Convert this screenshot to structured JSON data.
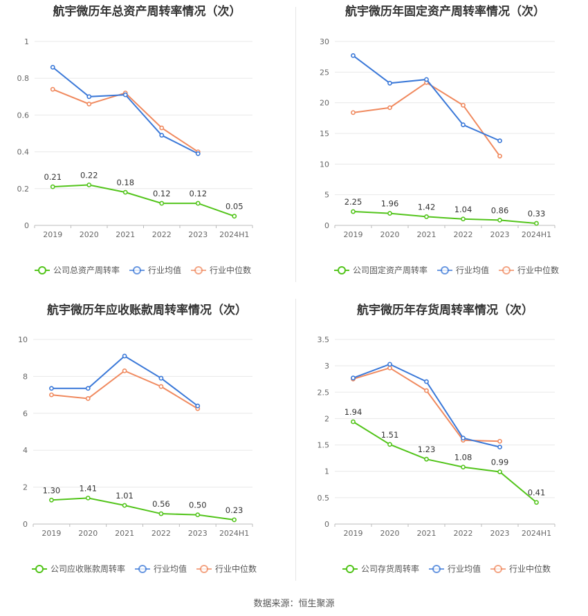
{
  "chart_data": [
    {
      "type": "line",
      "title": "航宇微历年总资产周转率情况（次）",
      "categories": [
        "2019",
        "2020",
        "2021",
        "2022",
        "2023",
        "2024H1"
      ],
      "yticks": [
        "0",
        "0.2",
        "0.4",
        "0.6",
        "0.8",
        "1"
      ],
      "ylim": [
        0,
        1
      ],
      "series": [
        {
          "name": "公司总资产周转率",
          "color": "#52c41a",
          "values": [
            0.21,
            0.22,
            0.18,
            0.12,
            0.12,
            0.05
          ],
          "labels": [
            "0.21",
            "0.22",
            "0.18",
            "0.12",
            "0.12",
            "0.05"
          ]
        },
        {
          "name": "行业均值",
          "color": "#3a78d8",
          "values": [
            0.86,
            0.7,
            0.71,
            0.49,
            0.39,
            null
          ]
        },
        {
          "name": "行业中位数",
          "color": "#f0895e",
          "values": [
            0.74,
            0.66,
            0.72,
            0.53,
            0.4,
            null
          ]
        }
      ]
    },
    {
      "type": "line",
      "title": "航宇微历年固定资产周转率情况（次）",
      "categories": [
        "2019",
        "2020",
        "2021",
        "2022",
        "2023",
        "2024H1"
      ],
      "yticks": [
        "0",
        "5",
        "10",
        "15",
        "20",
        "25",
        "30"
      ],
      "ylim": [
        0,
        30
      ],
      "series": [
        {
          "name": "公司固定资产周转率",
          "color": "#52c41a",
          "values": [
            2.25,
            1.96,
            1.42,
            1.04,
            0.86,
            0.33
          ],
          "labels": [
            "2.25",
            "1.96",
            "1.42",
            "1.04",
            "0.86",
            "0.33"
          ]
        },
        {
          "name": "行业均值",
          "color": "#3a78d8",
          "values": [
            27.7,
            23.2,
            23.8,
            16.4,
            13.8,
            null
          ]
        },
        {
          "name": "行业中位数",
          "color": "#f0895e",
          "values": [
            18.4,
            19.2,
            23.3,
            19.6,
            11.3,
            null
          ]
        }
      ]
    },
    {
      "type": "line",
      "title": "航宇微历年应收账款周转率情况（次）",
      "categories": [
        "2019",
        "2020",
        "2021",
        "2022",
        "2023",
        "2024H1"
      ],
      "yticks": [
        "0",
        "2",
        "4",
        "6",
        "8",
        "10"
      ],
      "ylim": [
        0,
        10
      ],
      "series": [
        {
          "name": "公司应收账款周转率",
          "color": "#52c41a",
          "values": [
            1.3,
            1.41,
            1.01,
            0.56,
            0.5,
            0.23
          ],
          "labels": [
            "1.30",
            "1.41",
            "1.01",
            "0.56",
            "0.50",
            "0.23"
          ]
        },
        {
          "name": "行业均值",
          "color": "#3a78d8",
          "values": [
            7.35,
            7.35,
            9.1,
            7.9,
            6.4,
            null
          ]
        },
        {
          "name": "行业中位数",
          "color": "#f0895e",
          "values": [
            7.0,
            6.8,
            8.3,
            7.45,
            6.25,
            null
          ]
        }
      ]
    },
    {
      "type": "line",
      "title": "航宇微历年存货周转率情况（次）",
      "categories": [
        "2019",
        "2020",
        "2021",
        "2022",
        "2023",
        "2024H1"
      ],
      "yticks": [
        "0",
        "0.5",
        "1",
        "1.5",
        "2",
        "2.5",
        "3",
        "3.5"
      ],
      "ylim": [
        0,
        3.5
      ],
      "series": [
        {
          "name": "公司存货周转率",
          "color": "#52c41a",
          "values": [
            1.94,
            1.51,
            1.23,
            1.08,
            0.99,
            0.41
          ],
          "labels": [
            "1.94",
            "1.51",
            "1.23",
            "1.08",
            "0.99",
            "0.41"
          ]
        },
        {
          "name": "行业均值",
          "color": "#3a78d8",
          "values": [
            2.77,
            3.03,
            2.7,
            1.63,
            1.46,
            null
          ]
        },
        {
          "name": "行业中位数",
          "color": "#f0895e",
          "values": [
            2.75,
            2.96,
            2.53,
            1.59,
            1.57,
            null
          ]
        }
      ]
    }
  ],
  "footer": {
    "source": "数据来源：恒生聚源"
  }
}
